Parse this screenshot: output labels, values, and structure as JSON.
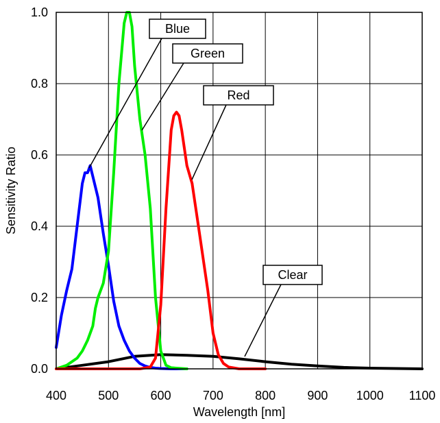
{
  "chart_data": {
    "type": "line",
    "title": "",
    "xlabel": "Wavelength [nm]",
    "ylabel": "Sensitivity Ratio",
    "xlim": [
      400,
      1100
    ],
    "ylim": [
      0.0,
      1.0
    ],
    "x_ticks": [
      "400",
      "500",
      "600",
      "700",
      "800",
      "900",
      "1000",
      "1100"
    ],
    "y_ticks": [
      "0.0",
      "0.2",
      "0.4",
      "0.6",
      "0.8",
      "1.0"
    ],
    "grid": true,
    "legend": "callouts",
    "series": [
      {
        "name": "Blue",
        "color": "#0000ff",
        "x": [
          400,
          410,
          420,
          430,
          440,
          450,
          455,
          460,
          465,
          470,
          480,
          490,
          500,
          510,
          520,
          530,
          540,
          550,
          560,
          570,
          580,
          590,
          600,
          620,
          650
        ],
        "y": [
          0.06,
          0.15,
          0.22,
          0.28,
          0.4,
          0.52,
          0.55,
          0.55,
          0.57,
          0.54,
          0.48,
          0.38,
          0.29,
          0.19,
          0.12,
          0.08,
          0.05,
          0.03,
          0.015,
          0.008,
          0.004,
          0.002,
          0.001,
          0.0,
          0.0
        ]
      },
      {
        "name": "Green",
        "color": "#00ee00",
        "x": [
          400,
          420,
          440,
          450,
          460,
          470,
          475,
          480,
          490,
          500,
          510,
          520,
          530,
          535,
          540,
          545,
          550,
          560,
          570,
          580,
          590,
          600,
          610,
          620,
          650
        ],
        "y": [
          0.0,
          0.01,
          0.03,
          0.05,
          0.08,
          0.12,
          0.17,
          0.2,
          0.24,
          0.33,
          0.55,
          0.8,
          0.97,
          1.0,
          1.0,
          0.96,
          0.85,
          0.7,
          0.6,
          0.45,
          0.2,
          0.05,
          0.01,
          0.003,
          0.0
        ]
      },
      {
        "name": "Red",
        "color": "#ff0000",
        "x": [
          400,
          500,
          560,
          580,
          590,
          600,
          610,
          620,
          625,
          630,
          635,
          640,
          650,
          660,
          670,
          680,
          690,
          700,
          710,
          720,
          730,
          750,
          800
        ],
        "y": [
          0.0,
          0.0,
          0.0,
          0.005,
          0.03,
          0.18,
          0.45,
          0.67,
          0.71,
          0.72,
          0.71,
          0.67,
          0.57,
          0.52,
          0.42,
          0.32,
          0.22,
          0.1,
          0.04,
          0.015,
          0.005,
          0.0,
          0.0
        ]
      },
      {
        "name": "Clear",
        "color": "#000000",
        "x": [
          400,
          450,
          500,
          550,
          600,
          650,
          700,
          750,
          800,
          850,
          900,
          950,
          1000,
          1050,
          1100
        ],
        "y": [
          0.0,
          0.01,
          0.02,
          0.035,
          0.04,
          0.038,
          0.035,
          0.028,
          0.02,
          0.013,
          0.008,
          0.004,
          0.002,
          0.001,
          0.0
        ]
      }
    ],
    "callouts": [
      {
        "label": "Blue",
        "color": "#000000"
      },
      {
        "label": "Green",
        "color": "#000000"
      },
      {
        "label": "Red",
        "color": "#000000"
      },
      {
        "label": "Clear",
        "color": "#000000"
      }
    ]
  }
}
